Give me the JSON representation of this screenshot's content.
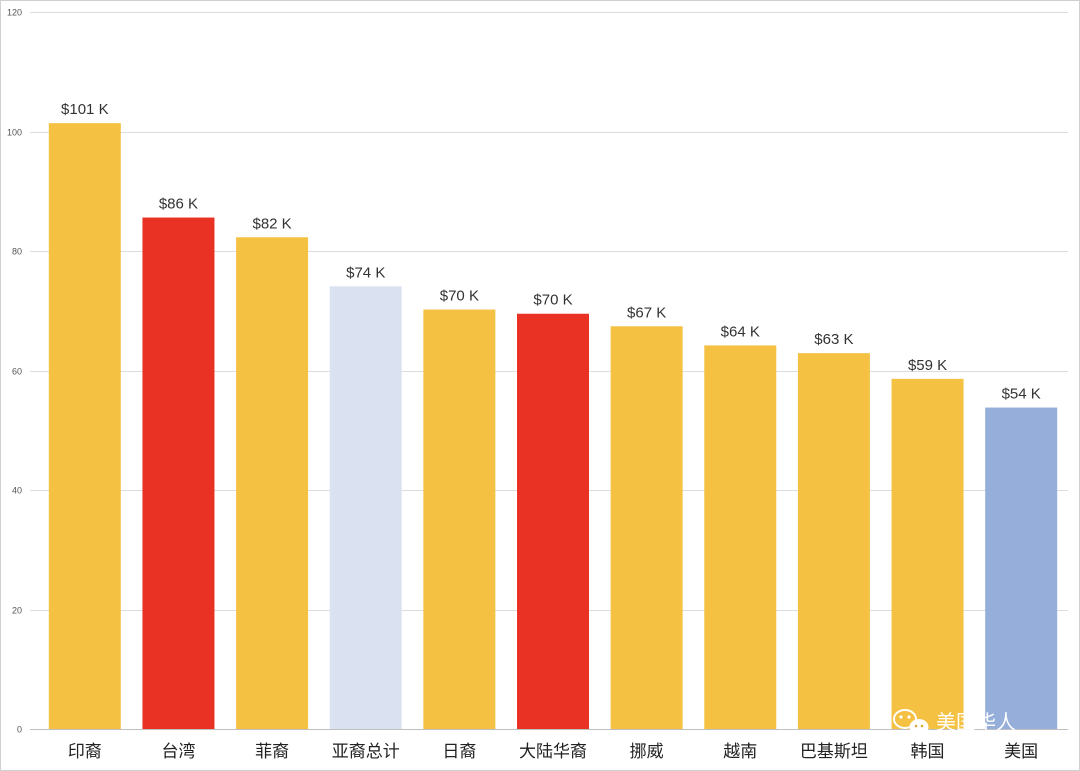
{
  "chart_data": {
    "type": "bar",
    "title": "",
    "xlabel": "",
    "ylabel": "",
    "ylim": [
      0,
      120
    ],
    "yticks": [
      0,
      20,
      40,
      60,
      80,
      100,
      120
    ],
    "grid": true,
    "categories": [
      "印裔",
      "台湾",
      "菲裔",
      "亚裔总计",
      "日裔",
      "大陆华裔",
      "挪威",
      "越南",
      "巴基斯坦",
      "韩国",
      "美国"
    ],
    "values": [
      101.4,
      85.6,
      82.3,
      74.1,
      70.2,
      69.5,
      67.4,
      64.2,
      62.9,
      58.6,
      53.8
    ],
    "data_labels": [
      "$101 K",
      "$86 K",
      "$82 K",
      "$74 K",
      "$70 K",
      "$70 K",
      "$67 K",
      "$64 K",
      "$63 K",
      "$59 K",
      "$54 K"
    ],
    "bar_colors": [
      "#F4C142",
      "#E93223",
      "#F4C142",
      "#DAE2F2",
      "#F4C142",
      "#E93223",
      "#F4C142",
      "#F4C142",
      "#F4C142",
      "#F4C142",
      "#95AEDA"
    ]
  },
  "watermark": {
    "text": "美国华人",
    "icon": "wechat-icon"
  }
}
